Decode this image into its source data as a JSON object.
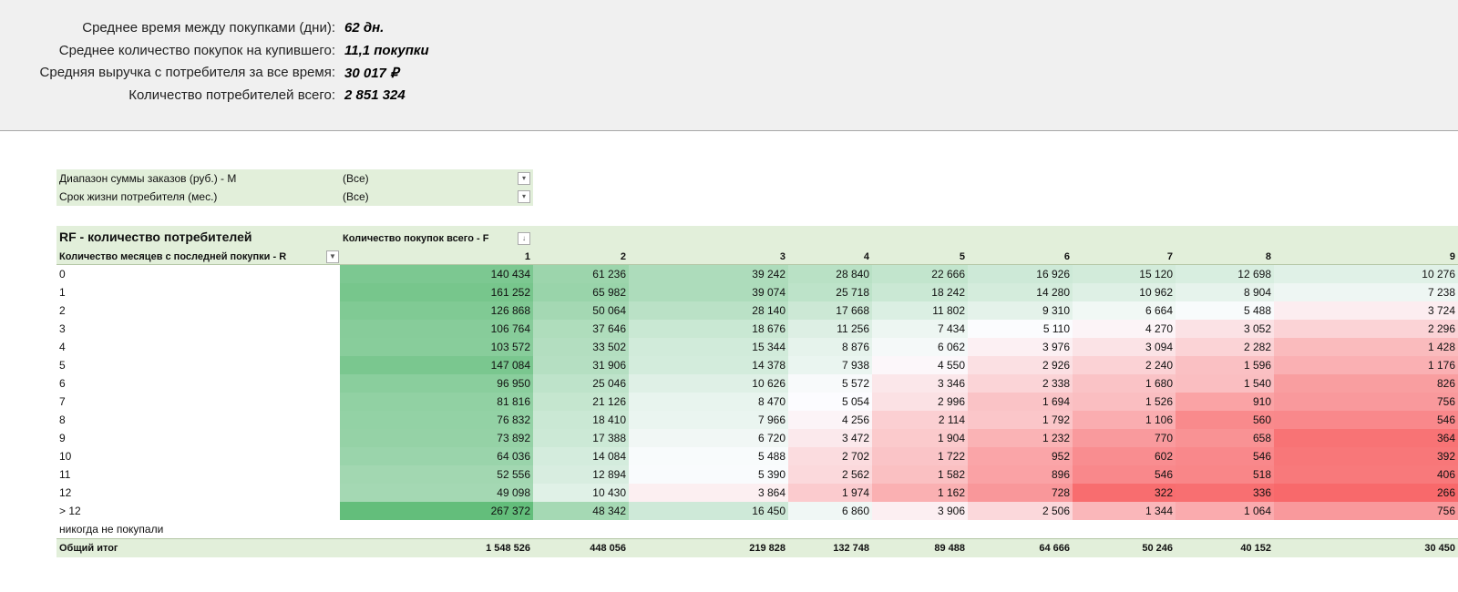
{
  "summary": [
    {
      "label": "Среднее время между покупками (дни):",
      "value": "62 дн."
    },
    {
      "label": "Среднее количество покупок на купившего:",
      "value": "11,1 покупки"
    },
    {
      "label": "Средняя выручка с потребителя за все время:",
      "value": "30 017 ₽"
    },
    {
      "label": "Количество потребителей всего:",
      "value": "2 851 324"
    }
  ],
  "filters": [
    {
      "label": "Диапазон суммы заказов (руб.) - M",
      "value": "(Все)"
    },
    {
      "label": "Срок жизни потребителя (мес.)",
      "value": "(Все)"
    }
  ],
  "pivot": {
    "title": "RF - количество потребителей",
    "columns_label": "Количество покупок всего - F",
    "rows_label": "Количество месяцев с последней покупки - R",
    "columns": [
      "1",
      "2",
      "3",
      "4",
      "5",
      "6",
      "7",
      "8",
      "9"
    ],
    "rows": [
      {
        "label": "0",
        "cells": [
          "140 434",
          "61 236",
          "39 242",
          "28 840",
          "22 666",
          "16 926",
          "15 120",
          "12 698",
          "10 276"
        ]
      },
      {
        "label": "1",
        "cells": [
          "161 252",
          "65 982",
          "39 074",
          "25 718",
          "18 242",
          "14 280",
          "10 962",
          "8 904",
          "7 238"
        ]
      },
      {
        "label": "2",
        "cells": [
          "126 868",
          "50 064",
          "28 140",
          "17 668",
          "11 802",
          "9 310",
          "6 664",
          "5 488",
          "3 724"
        ]
      },
      {
        "label": "3",
        "cells": [
          "106 764",
          "37 646",
          "18 676",
          "11 256",
          "7 434",
          "5 110",
          "4 270",
          "3 052",
          "2 296"
        ]
      },
      {
        "label": "4",
        "cells": [
          "103 572",
          "33 502",
          "15 344",
          "8 876",
          "6 062",
          "3 976",
          "3 094",
          "2 282",
          "1 428"
        ]
      },
      {
        "label": "5",
        "cells": [
          "147 084",
          "31 906",
          "14 378",
          "7 938",
          "4 550",
          "2 926",
          "2 240",
          "1 596",
          "1 176"
        ]
      },
      {
        "label": "6",
        "cells": [
          "96 950",
          "25 046",
          "10 626",
          "5 572",
          "3 346",
          "2 338",
          "1 680",
          "1 540",
          "826"
        ]
      },
      {
        "label": "7",
        "cells": [
          "81 816",
          "21 126",
          "8 470",
          "5 054",
          "2 996",
          "1 694",
          "1 526",
          "910",
          "756"
        ]
      },
      {
        "label": "8",
        "cells": [
          "76 832",
          "18 410",
          "7 966",
          "4 256",
          "2 114",
          "1 792",
          "1 106",
          "560",
          "546"
        ]
      },
      {
        "label": "9",
        "cells": [
          "73 892",
          "17 388",
          "6 720",
          "3 472",
          "1 904",
          "1 232",
          "770",
          "658",
          "364"
        ]
      },
      {
        "label": "10",
        "cells": [
          "64 036",
          "14 084",
          "5 488",
          "2 702",
          "1 722",
          "952",
          "602",
          "546",
          "392"
        ]
      },
      {
        "label": "11",
        "cells": [
          "52 556",
          "12 894",
          "5 390",
          "2 562",
          "1 582",
          "896",
          "546",
          "518",
          "406"
        ]
      },
      {
        "label": "12",
        "cells": [
          "49 098",
          "10 430",
          "3 864",
          "1 974",
          "1 162",
          "728",
          "322",
          "336",
          "266"
        ]
      },
      {
        "label": "> 12",
        "cells": [
          "267 372",
          "48 342",
          "16 450",
          "6 860",
          "3 906",
          "2 506",
          "1 344",
          "1 064",
          "756"
        ]
      },
      {
        "label": "никогда не покупали",
        "cells": []
      }
    ],
    "total": {
      "label": "Общий итог",
      "cells": [
        "1 548 526",
        "448 056",
        "219 828",
        "132 748",
        "89 488",
        "64 666",
        "50 246",
        "40 152",
        "30 450"
      ]
    }
  }
}
